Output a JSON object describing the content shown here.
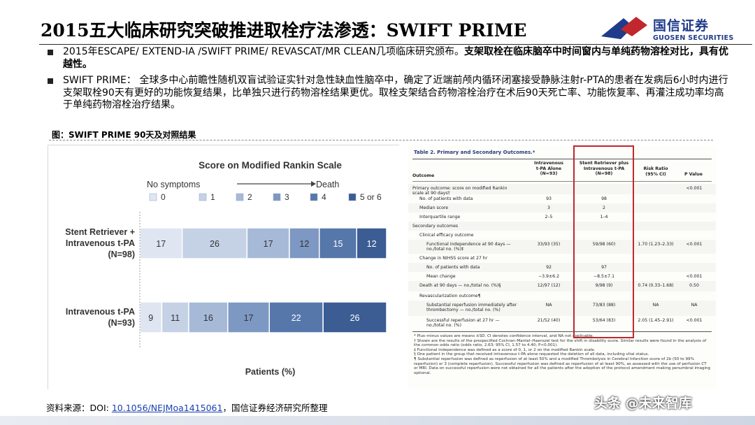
{
  "slide": {
    "title": "2015五大临床研究突破推进取栓疗法渗透：SWIFT PRIME",
    "logo_cn": "国信证券",
    "logo_en": "GUOSEN SECURITIES",
    "bullet1_plain": "2015年ESCAPE/ EXTEND-IA /SWIFT PRIME/ REVASCAT/MR CLEAN几项临床研究颁布。",
    "bullet1_bold": "支架取栓在临床脑卒中时间窗内与单纯药物溶栓对比，具有优越性。",
    "bullet2": "SWIFT PRIME： 全球多中心前瞻性随机双盲试验证实针对急性缺血性脑卒中，确定了近端前颅内循环闭塞接受静脉注射r-PTA的患者在发病后6小时内进行支架取栓90天有更好的功能恢复结果，比单独只进行药物溶栓结果更优。取栓支架结合药物溶栓治疗在术后90天死亡率、功能恢复率、再灌注成功率均高于单纯药物溶栓治疗结果。",
    "figure_caption": "图：SWIFT PRIME 90天及对照结果",
    "source_prefix": "资料来源：DOI: ",
    "source_link": "10.1056/NEJMoa1415061",
    "source_suffix": "，国信证券经济研究所整理",
    "watermark": "头条 @未来智库"
  },
  "colors": {
    "brand_blue": "#1f3b8a",
    "brand_red": "#c0282e",
    "mrs": [
      "#dfe6f1",
      "#c5d2e6",
      "#a6bad8",
      "#7d98c2",
      "#5677aa",
      "#3c5d93"
    ]
  },
  "chart_data": {
    "type": "bar",
    "orientation": "horizontal",
    "stacked": true,
    "title": "Score on Modified Rankin Scale",
    "scale_left": "No symptoms",
    "scale_right": "Death",
    "xlabel": "Patients (%)",
    "xlim": [
      0,
      100
    ],
    "legend": [
      "0",
      "1",
      "2",
      "3",
      "4",
      "5 or 6"
    ],
    "legend_position": "top",
    "categories": [
      "Stent Retriever + Intravenous t-PA (N=98)",
      "Intravenous t-PA (N=93)"
    ],
    "category_lines": [
      [
        "Stent Retriever +",
        "Intravenous t-PA",
        "(N=98)"
      ],
      [
        "Intravenous t-PA",
        "(N=93)"
      ]
    ],
    "values": [
      [
        17,
        26,
        17,
        12,
        15,
        12
      ],
      [
        9,
        11,
        16,
        17,
        22,
        26
      ]
    ]
  },
  "table": {
    "title": "Table 2. Primary and Secondary Outcomes.*",
    "headers": {
      "outcome": "Outcome",
      "iv": [
        "Intravenous",
        "t-PA Alone",
        "(N=93)"
      ],
      "stent": [
        "Stent Retriever plus",
        "Intravenous t-PA",
        "(N=98)"
      ],
      "risk": [
        "Risk Ratio",
        "(95% CI)"
      ],
      "p": "P Value"
    },
    "rows": [
      {
        "outcome": "Primary outcome: score on modified Rankin scale at 90 days†",
        "iv": "",
        "stent": "",
        "risk": "",
        "p": "<0.001"
      },
      {
        "outcome": "No. of patients with data",
        "iv": "93",
        "stent": "98",
        "risk": "",
        "p": ""
      },
      {
        "outcome": "Median score",
        "iv": "3",
        "stent": "2",
        "risk": "",
        "p": ""
      },
      {
        "outcome": "Interquartile range",
        "iv": "2–5",
        "stent": "1–4",
        "risk": "",
        "p": ""
      },
      {
        "outcome": "Secondary outcomes",
        "iv": "",
        "stent": "",
        "risk": "",
        "p": ""
      },
      {
        "outcome": "Clinical efficacy outcome",
        "iv": "",
        "stent": "",
        "risk": "",
        "p": ""
      },
      {
        "outcome": "Functional independence at 90 days — no./total no. (%)‡",
        "iv": "33/93 (35)",
        "stent": "59/98 (60)",
        "risk": "1.70 (1.23–2.33)",
        "p": "<0.001"
      },
      {
        "outcome": "Change in NIHSS score at 27 hr",
        "iv": "",
        "stent": "",
        "risk": "",
        "p": ""
      },
      {
        "outcome": "No. of patients with data",
        "iv": "92",
        "stent": "97",
        "risk": "",
        "p": ""
      },
      {
        "outcome": "Mean change",
        "iv": "−3.9±6.2",
        "stent": "−8.5±7.1",
        "risk": "",
        "p": "<0.001"
      },
      {
        "outcome": "Death at 90 days — no./total no. (%)§",
        "iv": "12/97 (12)",
        "stent": "9/98 (9)",
        "risk": "0.74 (0.33–1.68)",
        "p": "0.50"
      },
      {
        "outcome": "Revascularization outcome¶",
        "iv": "",
        "stent": "",
        "risk": "",
        "p": ""
      },
      {
        "outcome": "Substantial reperfusion immediately after thrombectomy — no./total no. (%)",
        "iv": "NA",
        "stent": "73/83 (88)",
        "risk": "NA",
        "p": "NA"
      },
      {
        "outcome": "Successful reperfusion at 27 hr — no./total no. (%)",
        "iv": "21/52 (40)",
        "stent": "53/64 (83)",
        "risk": "2.05 (1.45–2.91)",
        "p": "<0.001"
      }
    ],
    "notes": [
      "* Plus–minus values are means ±SD. CI denotes confidence interval, and NA not applicable.",
      "† Shown are the results of the prespecified Cochran–Mantel–Haenszel test for the shift in disability score. Similar results were found in the analysis of the common odds ratio (odds ratio, 2.63; 95% CI, 1.57 to 4.40; P<0.001).",
      "‡ Functional independence was defined as a score of 0, 1, or 2 on the modified Rankin scale.",
      "§ One patient in the group that received intravenous t-PA alone requested the deletion of all data, including vital status.",
      "¶ Substantial reperfusion was defined as reperfusion of at least 50% and a modified Thrombolysis in Cerebral Infarction score of 2b (50 to 99% reperfusion) or 3 (complete reperfusion). Successful reperfusion was defined as reperfusion of at least 90%, as assessed with the use of perfusion CT or MRI. Data on successful reperfusion were not obtained for all the patients after the adoption of the protocol amendment making penumbral imaging optional."
    ]
  }
}
